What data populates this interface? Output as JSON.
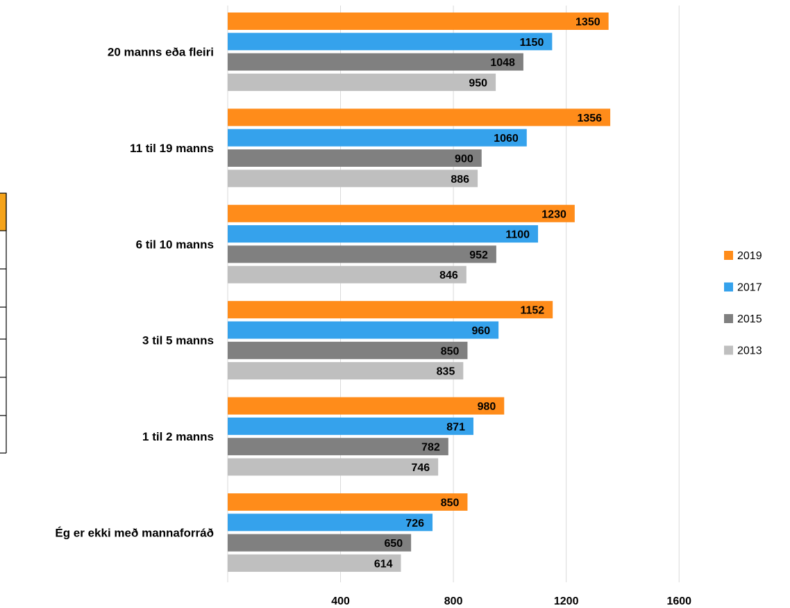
{
  "chart_data": {
    "type": "bar",
    "orientation": "horizontal",
    "categories": [
      "20 manns eða fleiri",
      "11 til 19 manns",
      "6 til 10 manns",
      "3 til 5 manns",
      "1 til 2 manns",
      "Ég er ekki með mannaforráð"
    ],
    "series": [
      {
        "name": "2019",
        "color": "#ff8c1a",
        "values": [
          1350,
          1356,
          1230,
          1152,
          980,
          850
        ]
      },
      {
        "name": "2017",
        "color": "#35a2ec",
        "values": [
          1150,
          1060,
          1100,
          960,
          871,
          726
        ]
      },
      {
        "name": "2015",
        "color": "#808080",
        "values": [
          1048,
          900,
          952,
          850,
          782,
          650
        ]
      },
      {
        "name": "2013",
        "color": "#bfbfbf",
        "values": [
          950,
          886,
          846,
          835,
          746,
          614
        ]
      }
    ],
    "x_ticks": [
      "400",
      "800",
      "1200",
      "1600"
    ],
    "xlim": [
      0,
      1600
    ],
    "title": "",
    "xlabel": "",
    "ylabel": "",
    "grid": true,
    "legend_position": "right",
    "data_labels": true
  },
  "background_fragment": {
    "header_color": "#f5a31a"
  }
}
